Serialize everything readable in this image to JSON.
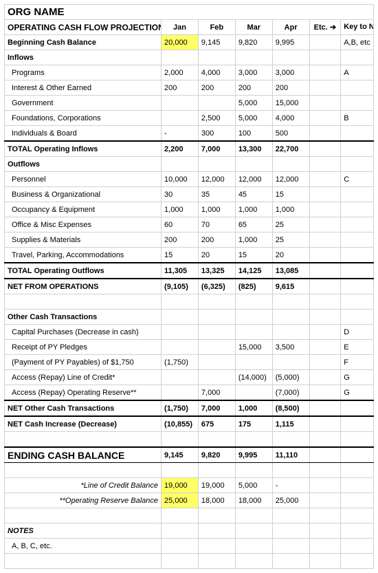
{
  "org_name": "ORG NAME",
  "title": "OPERATING CASH FLOW PROJECTIONS",
  "months": [
    "Jan",
    "Feb",
    "Mar",
    "Apr"
  ],
  "etc_label": "Etc. ➔",
  "key_header": "Key to Notes",
  "begin_row": {
    "label": "Beginning Cash Balance",
    "vals": [
      "20,000",
      "9,145",
      "9,820",
      "9,995"
    ],
    "note": "A,B, etc"
  },
  "inflows_header": "Inflows",
  "inflows": [
    {
      "label": "Programs",
      "vals": [
        "2,000",
        "4,000",
        "3,000",
        "3,000"
      ],
      "note": "A"
    },
    {
      "label": "Interest & Other Earned",
      "vals": [
        "200",
        "200",
        "200",
        "200"
      ],
      "note": ""
    },
    {
      "label": "Government",
      "vals": [
        "",
        "",
        "5,000",
        "15,000"
      ],
      "note": ""
    },
    {
      "label": "Foundations, Corporations",
      "vals": [
        "",
        "2,500",
        "5,000",
        "4,000"
      ],
      "note": "B"
    },
    {
      "label": "Individuals & Board",
      "vals": [
        "-",
        "300",
        "100",
        "500"
      ],
      "note": ""
    }
  ],
  "inflows_total": {
    "label": "TOTAL Operating Inflows",
    "vals": [
      "2,200",
      "7,000",
      "13,300",
      "22,700"
    ]
  },
  "outflows_header": "Outflows",
  "outflows": [
    {
      "label": "Personnel",
      "vals": [
        "10,000",
        "12,000",
        "12,000",
        "12,000"
      ],
      "note": "C"
    },
    {
      "label": "Business & Organizational",
      "vals": [
        "30",
        "35",
        "45",
        "15"
      ],
      "note": ""
    },
    {
      "label": "Occupancy & Equipment",
      "vals": [
        "1,000",
        "1,000",
        "1,000",
        "1,000"
      ],
      "note": ""
    },
    {
      "label": "Office & Misc Expenses",
      "vals": [
        "60",
        "70",
        "65",
        "25"
      ],
      "note": ""
    },
    {
      "label": "Supplies & Materials",
      "vals": [
        "200",
        "200",
        "1,000",
        "25"
      ],
      "note": ""
    },
    {
      "label": "Travel, Parking, Accommodations",
      "vals": [
        "15",
        "20",
        "15",
        "20"
      ],
      "note": ""
    }
  ],
  "outflows_total": {
    "label": "TOTAL Operating Outflows",
    "vals": [
      "11,305",
      "13,325",
      "14,125",
      "13,085"
    ]
  },
  "net_ops": {
    "label": "NET FROM OPERATIONS",
    "vals": [
      "(9,105)",
      "(6,325)",
      "(825)",
      "9,615"
    ]
  },
  "other_header": "Other Cash Transactions",
  "other": [
    {
      "label": "Capital Purchases (Decrease in cash)",
      "vals": [
        "",
        "",
        "",
        ""
      ],
      "note": "D"
    },
    {
      "label": "Receipt of PY Pledges",
      "vals": [
        "",
        "",
        "15,000",
        "3,500"
      ],
      "note": "E"
    },
    {
      "label": "(Payment of PY Payables) of $1,750",
      "vals": [
        "(1,750)",
        "",
        "",
        ""
      ],
      "note": "F"
    },
    {
      "label": "Access (Repay) Line of Credit*",
      "vals": [
        "",
        "",
        "(14,000)",
        "(5,000)"
      ],
      "note": "G"
    },
    {
      "label": "Access (Repay) Operating Reserve**",
      "vals": [
        "",
        "7,000",
        "",
        "(7,000)"
      ],
      "note": "G"
    }
  ],
  "net_other": {
    "label": "NET Other Cash Transactions",
    "vals": [
      "(1,750)",
      "7,000",
      "1,000",
      "(8,500)"
    ]
  },
  "net_cash": {
    "label": "NET Cash Increase (Decrease)",
    "vals": [
      "(10,855)",
      "675",
      "175",
      "1,115"
    ]
  },
  "ending": {
    "label": "ENDING CASH BALANCE",
    "vals": [
      "9,145",
      "9,820",
      "9,995",
      "11,110"
    ]
  },
  "loc": {
    "label": "*Line of Credit Balance",
    "vals": [
      "19,000",
      "19,000",
      "5,000",
      "-"
    ]
  },
  "reserve": {
    "label": "**Operating Reserve Balance",
    "vals": [
      "25,000",
      "18,000",
      "18,000",
      "25,000"
    ]
  },
  "notes_header": "NOTES",
  "notes_line": "A, B, C, etc.",
  "colors": {
    "highlight": "#ffff66",
    "grid": "#d0d0d0",
    "bg": "#ffffff",
    "text": "#000000"
  }
}
